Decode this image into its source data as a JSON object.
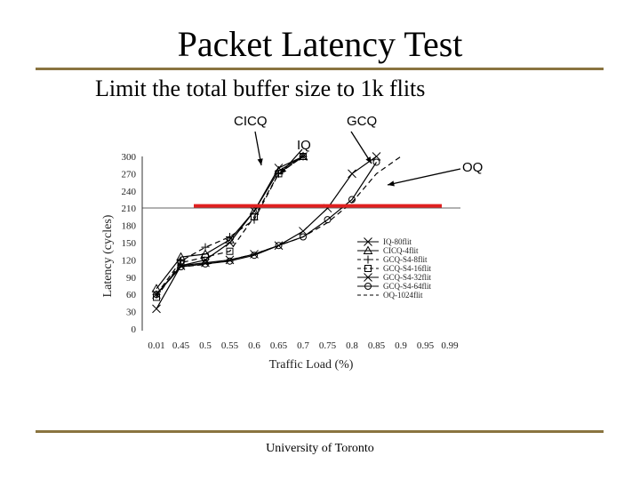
{
  "slide": {
    "title": "Packet Latency Test",
    "subtitle": "Limit the total buffer size to 1k flits",
    "footer": "University of Toronto"
  },
  "callouts": {
    "cicq": "CICQ",
    "gcq": "GCQ",
    "iq": "IQ",
    "oq": "OQ"
  },
  "colors": {
    "rule": "#8a7440",
    "highlight_line": "#e02020",
    "line": "#000000"
  },
  "chart_data": {
    "type": "line",
    "xlabel": "Traffic Load (%)",
    "ylabel": "Latency (cycles)",
    "categories": [
      "0.01",
      "0.45",
      "0.5",
      "0.55",
      "0.6",
      "0.65",
      "0.7",
      "0.75",
      "0.8",
      "0.85",
      "0.9",
      "0.95",
      "0.99"
    ],
    "yticks": [
      0,
      30,
      60,
      90,
      120,
      150,
      180,
      210,
      240,
      270,
      300
    ],
    "ylim": [
      0,
      300
    ],
    "grid": false,
    "legend_position": "bottom-right",
    "reference_line": {
      "y": 214,
      "color": "#e02020"
    },
    "series": [
      {
        "name": "IQ-80flit",
        "marker": "x",
        "dash": "solid",
        "points": [
          [
            0,
            35
          ],
          [
            1,
            110
          ],
          [
            2,
            120
          ],
          [
            3,
            150
          ],
          [
            4,
            205
          ],
          [
            5,
            280
          ],
          [
            6,
            300
          ]
        ]
      },
      {
        "name": "CICQ-4flit",
        "marker": "triangle",
        "dash": "solid",
        "points": [
          [
            0,
            70
          ],
          [
            1,
            125
          ],
          [
            2,
            130
          ],
          [
            3,
            155
          ],
          [
            4,
            205
          ],
          [
            5,
            275
          ],
          [
            6,
            300
          ]
        ]
      },
      {
        "name": "GCQ-S4-8flit",
        "marker": "plus",
        "dash": "dashed",
        "points": [
          [
            0,
            60
          ],
          [
            1,
            118
          ],
          [
            2,
            142
          ],
          [
            3,
            160
          ],
          [
            4,
            190
          ],
          [
            5,
            270
          ],
          [
            6,
            300
          ]
        ]
      },
      {
        "name": "GCQ-S4-16flit",
        "marker": "square",
        "dash": "dashed",
        "points": [
          [
            0,
            55
          ],
          [
            1,
            115
          ],
          [
            2,
            125
          ],
          [
            3,
            135
          ],
          [
            4,
            195
          ],
          [
            5,
            270
          ],
          [
            6,
            300
          ]
        ]
      },
      {
        "name": "GCQ-S4-32flit",
        "marker": "x",
        "dash": "solid",
        "points": [
          [
            0,
            60
          ],
          [
            1,
            110
          ],
          [
            2,
            115
          ],
          [
            3,
            120
          ],
          [
            4,
            130
          ],
          [
            5,
            145
          ],
          [
            6,
            170
          ],
          [
            7,
            210
          ],
          [
            8,
            270
          ],
          [
            9,
            300
          ]
        ]
      },
      {
        "name": "GCQ-S4-64flit",
        "marker": "circle",
        "dash": "solid",
        "points": [
          [
            0,
            60
          ],
          [
            1,
            108
          ],
          [
            2,
            113
          ],
          [
            3,
            118
          ],
          [
            4,
            128
          ],
          [
            5,
            145
          ],
          [
            6,
            160
          ],
          [
            7,
            190
          ],
          [
            8,
            225
          ],
          [
            9,
            290
          ]
        ]
      },
      {
        "name": "OQ-1024flit",
        "marker": "none",
        "dash": "dashed",
        "points": [
          [
            0,
            60
          ],
          [
            1,
            108
          ],
          [
            2,
            112
          ],
          [
            3,
            120
          ],
          [
            4,
            130
          ],
          [
            5,
            145
          ],
          [
            6,
            160
          ],
          [
            7,
            185
          ],
          [
            8,
            220
          ],
          [
            9,
            270
          ],
          [
            10,
            300
          ]
        ]
      }
    ]
  }
}
